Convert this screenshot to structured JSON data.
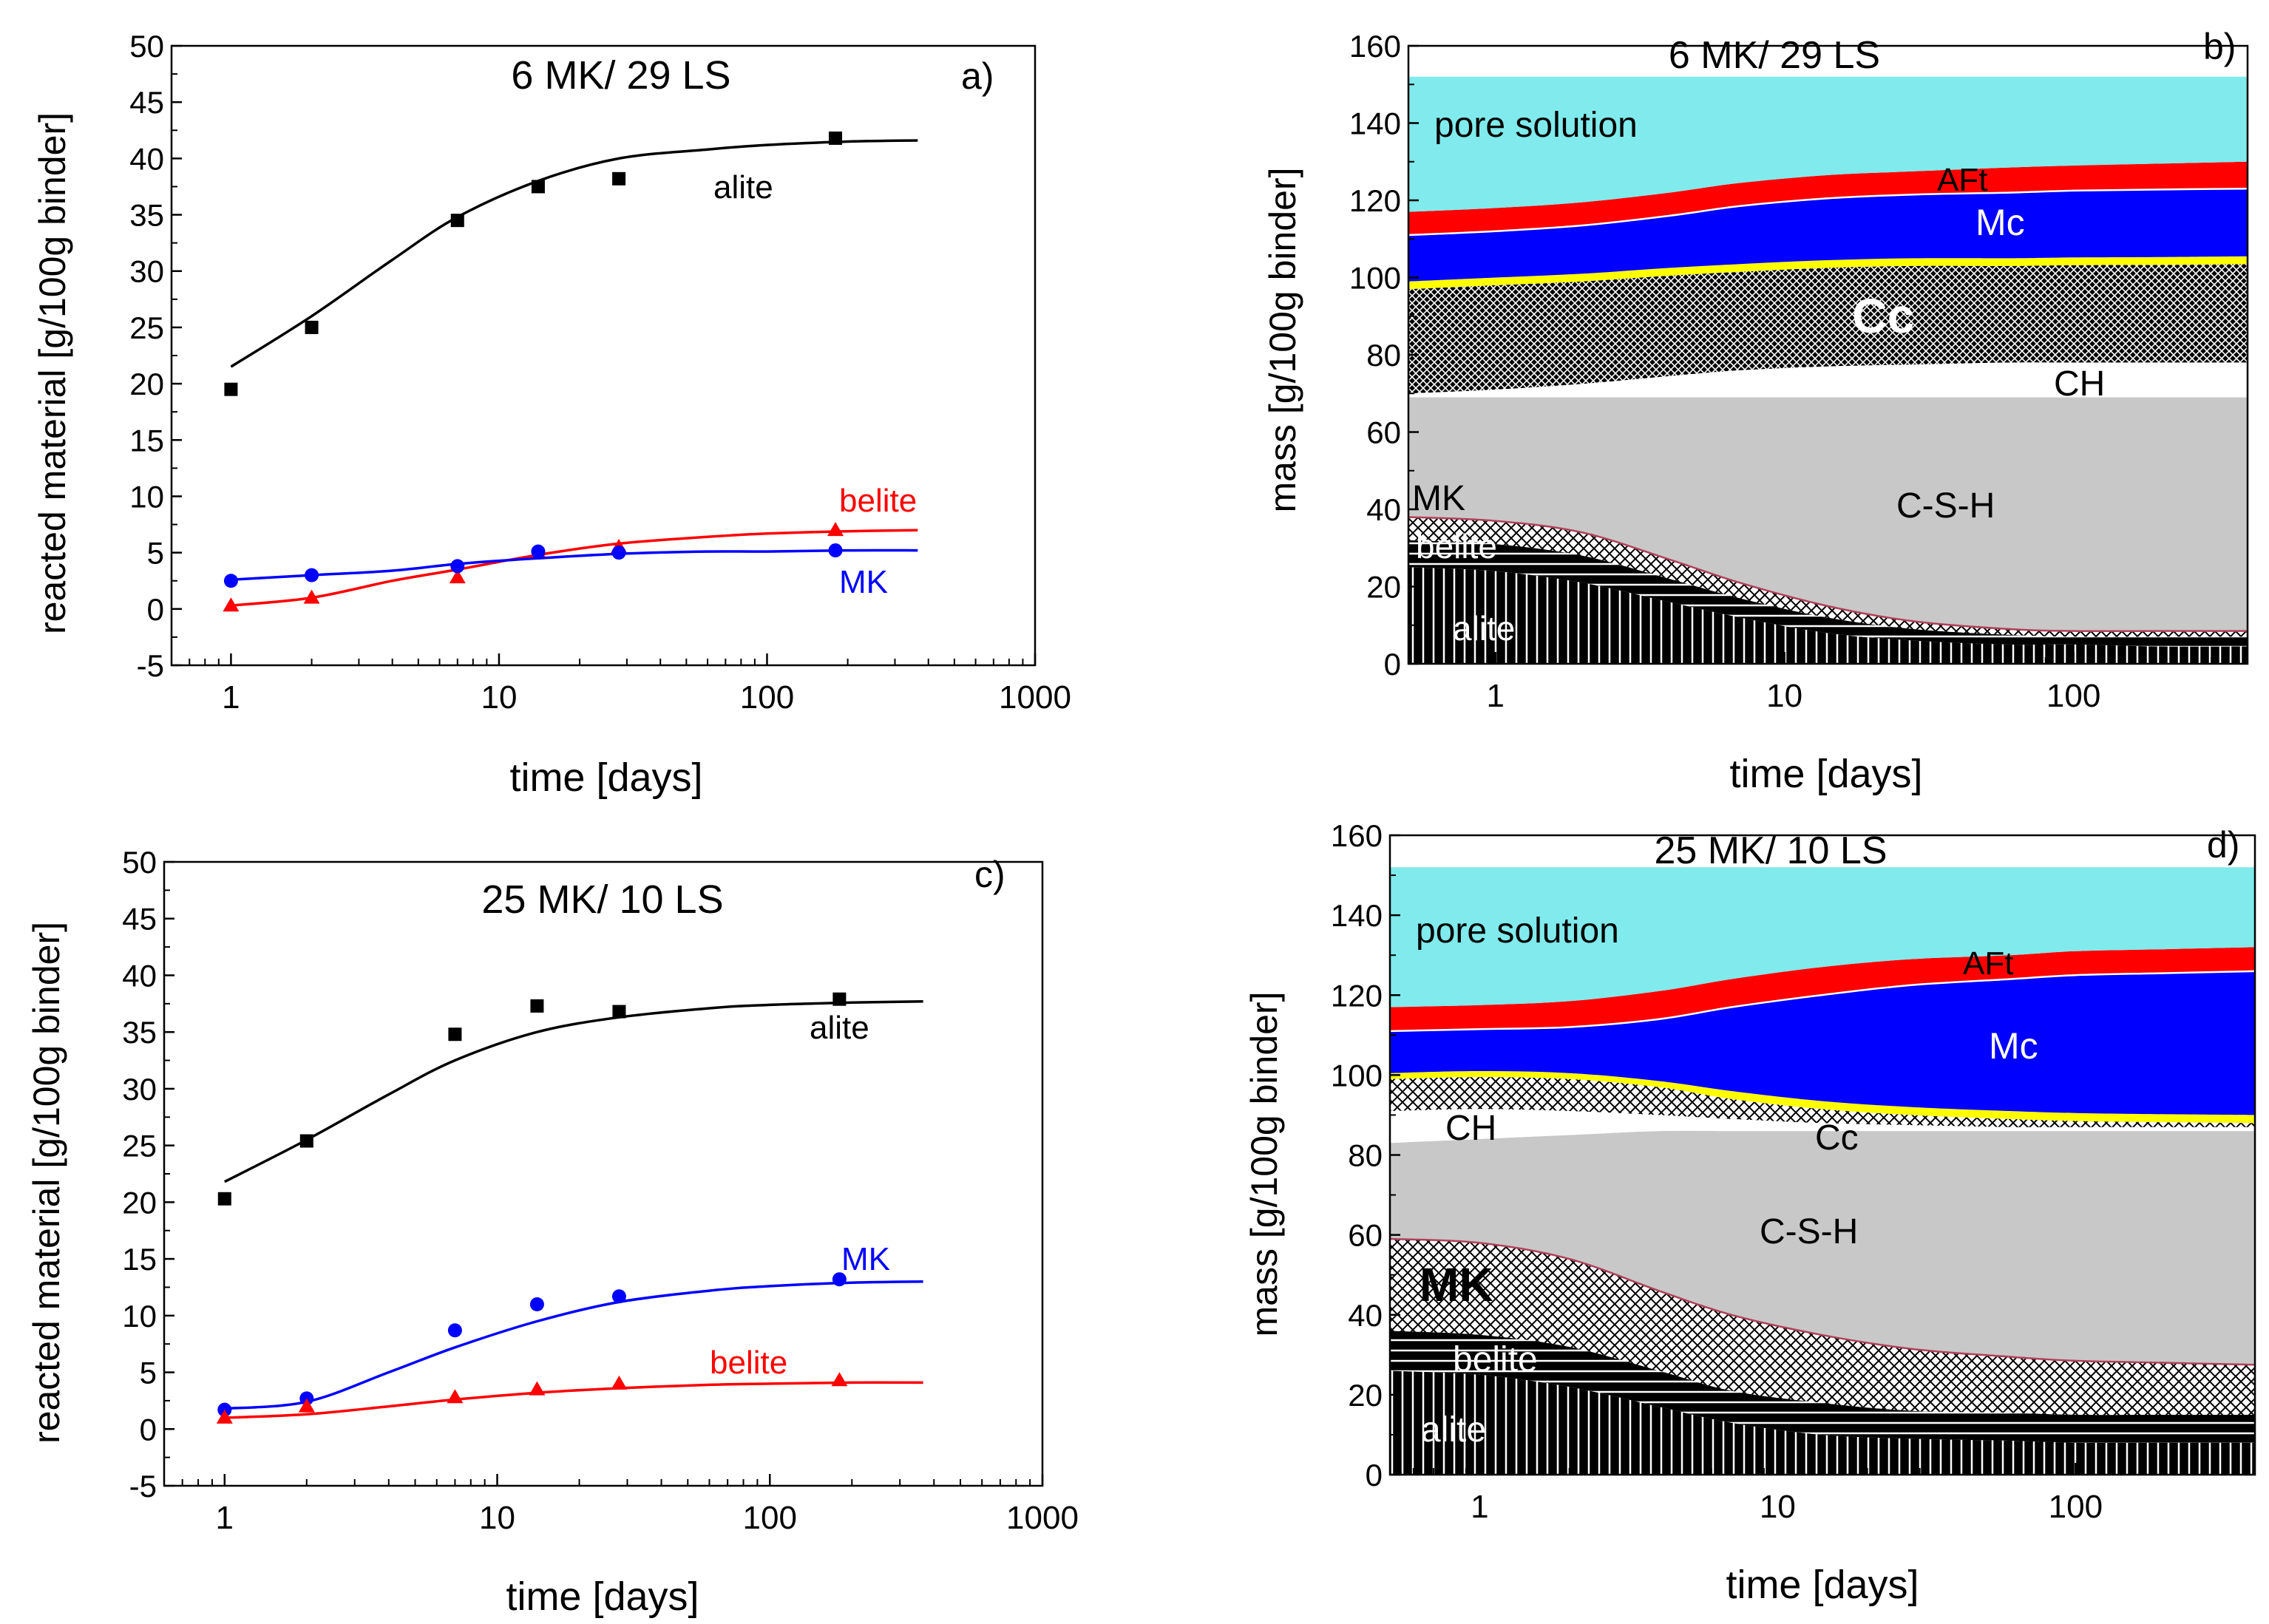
{
  "colors": {
    "alite": "#000000",
    "belite": "#ff0000",
    "MK": "#0000ff",
    "pore_solution": "#80eaec",
    "AFt": "#ff0000",
    "Mc": "#0000ff",
    "Cc": "#1a1a1a",
    "CH": "#ffffff",
    "CSH": "#c8c8c8",
    "yellow_band": "#ffff00"
  },
  "chart_data": [
    {
      "panel": "a)",
      "type": "line",
      "title": "6 MK/ 29 LS",
      "xlabel": "time [days]",
      "ylabel": "reacted material [g/100g binder]",
      "xscale": "log",
      "xlim": [
        0.6,
        1000
      ],
      "ylim": [
        -5,
        50
      ],
      "xticks": [
        "1",
        "10",
        "100",
        "1000"
      ],
      "yticks": [
        "-5",
        "0",
        "5",
        "10",
        "15",
        "20",
        "25",
        "30",
        "35",
        "40",
        "45",
        "50"
      ],
      "series": [
        {
          "name": "alite",
          "label": "alite",
          "color": "#000000",
          "marker": "square",
          "points": [
            [
              1,
              19.5
            ],
            [
              2,
              25
            ],
            [
              7,
              34.5
            ],
            [
              14,
              37.5
            ],
            [
              28,
              38.2
            ],
            [
              180,
              41.8
            ]
          ],
          "fit": [
            [
              1,
              21.5
            ],
            [
              2,
              26
            ],
            [
              4,
              31
            ],
            [
              7,
              34.8
            ],
            [
              14,
              38
            ],
            [
              28,
              40
            ],
            [
              60,
              40.8
            ],
            [
              100,
              41.2
            ],
            [
              200,
              41.5
            ],
            [
              365,
              41.6
            ]
          ]
        },
        {
          "name": "belite",
          "label": "belite",
          "color": "#ff0000",
          "marker": "triangle",
          "points": [
            [
              1,
              0.3
            ],
            [
              2,
              1
            ],
            [
              7,
              2.8
            ],
            [
              14,
              5
            ],
            [
              28,
              5.5
            ],
            [
              180,
              7
            ]
          ],
          "fit": [
            [
              1,
              0.3
            ],
            [
              2,
              1
            ],
            [
              4,
              2.5
            ],
            [
              7,
              3.5
            ],
            [
              14,
              4.8
            ],
            [
              28,
              5.8
            ],
            [
              60,
              6.4
            ],
            [
              100,
              6.7
            ],
            [
              200,
              6.9
            ],
            [
              365,
              7
            ]
          ]
        },
        {
          "name": "MK",
          "label": "MK",
          "color": "#0000ff",
          "marker": "circle",
          "points": [
            [
              1,
              2.5
            ],
            [
              2,
              3
            ],
            [
              7,
              3.8
            ],
            [
              14,
              5.1
            ],
            [
              28,
              5
            ],
            [
              180,
              5.2
            ]
          ],
          "fit": [
            [
              1,
              2.6
            ],
            [
              2,
              3
            ],
            [
              4,
              3.4
            ],
            [
              7,
              4
            ],
            [
              14,
              4.5
            ],
            [
              28,
              4.9
            ],
            [
              60,
              5.1
            ],
            [
              100,
              5.1
            ],
            [
              200,
              5.2
            ],
            [
              365,
              5.2
            ]
          ]
        }
      ]
    },
    {
      "panel": "b)",
      "type": "area",
      "title": "6 MK/ 29 LS",
      "xlabel": "time [days]",
      "ylabel": "mass [g/100g binder]",
      "xscale": "log",
      "xlim": [
        0.5,
        400
      ],
      "ylim": [
        0,
        160
      ],
      "xticks": [
        "1",
        "10",
        "100"
      ],
      "yticks": [
        "0",
        "20",
        "40",
        "60",
        "80",
        "100",
        "120",
        "140",
        "160"
      ],
      "x": [
        0.5,
        1,
        2,
        4,
        7,
        14,
        28,
        60,
        100,
        200,
        400
      ],
      "boundaries": {
        "alite_top": [
          25,
          24,
          21,
          16,
          12,
          8,
          6,
          5,
          5,
          4.5,
          4.5
        ],
        "belite_top": [
          32,
          31,
          28,
          22,
          17,
          12,
          9,
          7.5,
          7,
          7,
          7
        ],
        "MK_top": [
          38,
          37,
          34,
          27,
          21,
          15,
          11,
          9,
          8.5,
          8.5,
          8.5
        ],
        "CSH_top": [
          69,
          69,
          69,
          69,
          69,
          69,
          69,
          69,
          69,
          69,
          69
        ],
        "CH_top": [
          70,
          71,
          72.5,
          74.5,
          76,
          77,
          77.5,
          78,
          78,
          78,
          78
        ],
        "Cc_top": [
          97,
          98,
          99,
          100.5,
          101.5,
          102.5,
          103,
          103,
          103.2,
          103.3,
          103.5
        ],
        "yellow_top": [
          99,
          100,
          101,
          102.5,
          103.5,
          104.5,
          105,
          105,
          105.2,
          105.3,
          105.5
        ],
        "Mc_top": [
          111,
          112,
          113.5,
          116,
          118.5,
          120.5,
          121.5,
          122,
          122.5,
          122.8,
          123
        ],
        "AFt_top": [
          117,
          118,
          119.5,
          122,
          124.5,
          126.5,
          127.5,
          128.5,
          129,
          129.5,
          130
        ],
        "pore_top": [
          152,
          152,
          152,
          152,
          152,
          152,
          152,
          152,
          152,
          152,
          152
        ]
      },
      "labels": {
        "pore": "pore solution",
        "AFt": "AFt",
        "Mc": "Mc",
        "Cc": "Cc",
        "CH": "CH",
        "CSH": "C-S-H",
        "MK": "MK",
        "belite": "belite",
        "alite": "alite"
      }
    },
    {
      "panel": "c)",
      "type": "line",
      "title": "25 MK/ 10 LS",
      "xlabel": "time [days]",
      "ylabel": "reacted material [g/100g binder]",
      "xscale": "log",
      "xlim": [
        0.6,
        1000
      ],
      "ylim": [
        -5,
        50
      ],
      "xticks": [
        "1",
        "10",
        "100",
        "1000"
      ],
      "yticks": [
        "-5",
        "0",
        "5",
        "10",
        "15",
        "20",
        "25",
        "30",
        "35",
        "40",
        "45",
        "50"
      ],
      "series": [
        {
          "name": "alite",
          "label": "alite",
          "color": "#000000",
          "marker": "square",
          "points": [
            [
              1,
              20.3
            ],
            [
              2,
              25.4
            ],
            [
              7,
              34.8
            ],
            [
              14,
              37.3
            ],
            [
              28,
              36.8
            ],
            [
              180,
              37.9
            ]
          ],
          "fit": [
            [
              1,
              21.8
            ],
            [
              2,
              25.5
            ],
            [
              4,
              29.5
            ],
            [
              7,
              32.5
            ],
            [
              14,
              35
            ],
            [
              28,
              36.3
            ],
            [
              60,
              37.1
            ],
            [
              100,
              37.4
            ],
            [
              200,
              37.6
            ],
            [
              365,
              37.7
            ]
          ]
        },
        {
          "name": "MK",
          "label": "MK",
          "color": "#0000ff",
          "marker": "circle",
          "points": [
            [
              1,
              1.7
            ],
            [
              2,
              2.7
            ],
            [
              7,
              8.7
            ],
            [
              14,
              11
            ],
            [
              28,
              11.7
            ],
            [
              180,
              13.2
            ]
          ],
          "fit": [
            [
              1,
              1.8
            ],
            [
              2,
              2.4
            ],
            [
              4,
              5
            ],
            [
              7,
              7.2
            ],
            [
              14,
              9.5
            ],
            [
              28,
              11.2
            ],
            [
              60,
              12.2
            ],
            [
              100,
              12.6
            ],
            [
              200,
              12.9
            ],
            [
              365,
              13
            ]
          ]
        },
        {
          "name": "belite",
          "label": "belite",
          "color": "#ff0000",
          "marker": "triangle",
          "points": [
            [
              1,
              1
            ],
            [
              2,
              2
            ],
            [
              7,
              2.8
            ],
            [
              14,
              3.5
            ],
            [
              28,
              4
            ],
            [
              180,
              4.3
            ]
          ],
          "fit": [
            [
              1,
              1
            ],
            [
              2,
              1.3
            ],
            [
              4,
              2
            ],
            [
              7,
              2.6
            ],
            [
              14,
              3.2
            ],
            [
              28,
              3.6
            ],
            [
              60,
              3.9
            ],
            [
              100,
              4
            ],
            [
              200,
              4.1
            ],
            [
              365,
              4.1
            ]
          ]
        }
      ]
    },
    {
      "panel": "d)",
      "type": "area",
      "title": "25 MK/ 10 LS",
      "xlabel": "time [days]",
      "ylabel": "mass [g/100g binder]",
      "xscale": "log",
      "xlim": [
        0.5,
        400
      ],
      "ylim": [
        0,
        160
      ],
      "xticks": [
        "1",
        "10",
        "100"
      ],
      "yticks": [
        "0",
        "20",
        "40",
        "60",
        "80",
        "100",
        "120",
        "140",
        "160"
      ],
      "x": [
        0.5,
        1,
        2,
        4,
        7,
        14,
        28,
        60,
        100,
        200,
        400
      ],
      "boundaries": {
        "alite_top": [
          26,
          25,
          22,
          17,
          13,
          10,
          9,
          8.5,
          8,
          8,
          8
        ],
        "belite_top": [
          36,
          35,
          32,
          26,
          21,
          18,
          16,
          15.5,
          15,
          15,
          15
        ],
        "MK_top": [
          59,
          58,
          54,
          46,
          40,
          35,
          31.5,
          29.5,
          28.5,
          28,
          27.5
        ],
        "CSH_top": [
          83,
          84,
          85,
          86,
          86,
          86,
          86,
          86,
          86,
          86,
          86
        ],
        "CH_top": [
          91,
          91.5,
          91,
          90,
          89,
          88,
          87.5,
          87,
          87,
          87,
          87
        ],
        "Cc_top": [
          99,
          99.5,
          99,
          97,
          94,
          91.5,
          90,
          89,
          88.5,
          88.2,
          88
        ],
        "yellow_top": [
          100.5,
          101,
          100.5,
          98.5,
          96,
          93.5,
          92,
          91,
          90.5,
          90.2,
          90
        ],
        "Mc_top": [
          111,
          111.5,
          112,
          114,
          117,
          120,
          122.5,
          124,
          125,
          125.5,
          126
        ],
        "AFt_top": [
          117,
          117.5,
          118.5,
          121,
          124,
          127,
          129,
          130,
          131,
          131.5,
          132
        ],
        "pore_top": [
          152,
          152,
          152,
          152,
          152,
          152,
          152,
          152,
          152,
          152,
          152
        ]
      },
      "labels": {
        "pore": "pore solution",
        "AFt": "AFt",
        "Mc": "Mc",
        "Cc": "Cc",
        "CH": "CH",
        "CSH": "C-S-H",
        "MK": "MK",
        "belite": "belite",
        "alite": "alite"
      }
    }
  ]
}
